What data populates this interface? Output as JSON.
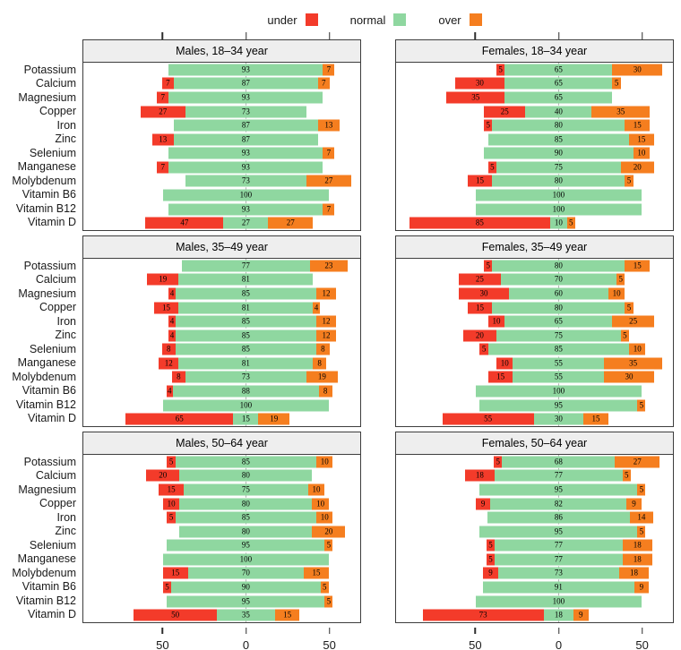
{
  "chart_data": {
    "type": "bar",
    "subtype": "diverging-stacked-bar (likert, normal segment centered at 0)",
    "title": "",
    "xlabel": "",
    "ylabel": "",
    "values_unit": "percent",
    "legend": {
      "position": "top-center",
      "items": [
        {
          "name": "under",
          "label": "under",
          "color": "#F33B2A"
        },
        {
          "name": "normal",
          "label": "normal",
          "color": "#8FD7A0"
        },
        {
          "name": "over",
          "label": "over",
          "color": "#F57E1F"
        }
      ]
    },
    "categories": [
      "Potassium",
      "Calcium",
      "Magnesium",
      "Copper",
      "Iron",
      "Zinc",
      "Selenium",
      "Manganese",
      "Molybdenum",
      "Vitamin B6",
      "Vitamin B12",
      "Vitamin D"
    ],
    "series_names": [
      "under",
      "normal",
      "over"
    ],
    "axis": {
      "range": [
        -98,
        69
      ],
      "ticks": [
        -50,
        0,
        50
      ],
      "tick_labels": [
        "50",
        "0",
        "50"
      ],
      "grid": "zero-line only (dashed)"
    },
    "panels": [
      {
        "title": "Males, 18–34 year",
        "rows": [
          [
            0,
            93,
            7
          ],
          [
            7,
            87,
            7
          ],
          [
            7,
            93,
            0
          ],
          [
            27,
            73,
            0
          ],
          [
            0,
            87,
            13
          ],
          [
            13,
            87,
            0
          ],
          [
            0,
            93,
            7
          ],
          [
            7,
            93,
            0
          ],
          [
            0,
            73,
            27
          ],
          [
            0,
            100,
            0
          ],
          [
            0,
            93,
            7
          ],
          [
            47,
            27,
            27
          ]
        ]
      },
      {
        "title": "Females, 18–34 year",
        "rows": [
          [
            5,
            65,
            30
          ],
          [
            30,
            65,
            5
          ],
          [
            35,
            65,
            0
          ],
          [
            25,
            40,
            35
          ],
          [
            5,
            80,
            15
          ],
          [
            0,
            85,
            15
          ],
          [
            0,
            90,
            10
          ],
          [
            5,
            75,
            20
          ],
          [
            15,
            80,
            5
          ],
          [
            0,
            100,
            0
          ],
          [
            0,
            100,
            0
          ],
          [
            85,
            10,
            5
          ]
        ]
      },
      {
        "title": "Males, 35–49 year",
        "rows": [
          [
            0,
            77,
            23
          ],
          [
            19,
            81,
            0
          ],
          [
            4,
            85,
            12
          ],
          [
            15,
            81,
            4
          ],
          [
            4,
            85,
            12
          ],
          [
            4,
            85,
            12
          ],
          [
            8,
            85,
            8
          ],
          [
            12,
            81,
            8
          ],
          [
            8,
            73,
            19
          ],
          [
            4,
            88,
            8
          ],
          [
            0,
            100,
            0
          ],
          [
            65,
            15,
            19
          ]
        ]
      },
      {
        "title": "Females, 35–49 year",
        "rows": [
          [
            5,
            80,
            15
          ],
          [
            25,
            70,
            5
          ],
          [
            30,
            60,
            10
          ],
          [
            15,
            80,
            5
          ],
          [
            10,
            65,
            25
          ],
          [
            20,
            75,
            5
          ],
          [
            5,
            85,
            10
          ],
          [
            10,
            55,
            35
          ],
          [
            15,
            55,
            30
          ],
          [
            0,
            100,
            0
          ],
          [
            0,
            95,
            5
          ],
          [
            55,
            30,
            15
          ]
        ]
      },
      {
        "title": "Males, 50–64 year",
        "rows": [
          [
            5,
            85,
            10
          ],
          [
            20,
            80,
            0
          ],
          [
            15,
            75,
            10
          ],
          [
            10,
            80,
            10
          ],
          [
            5,
            85,
            10
          ],
          [
            0,
            80,
            20
          ],
          [
            0,
            95,
            5
          ],
          [
            0,
            100,
            0
          ],
          [
            15,
            70,
            15
          ],
          [
            5,
            90,
            5
          ],
          [
            0,
            95,
            5
          ],
          [
            50,
            35,
            15
          ]
        ]
      },
      {
        "title": "Females, 50–64 year",
        "rows": [
          [
            5,
            68,
            27
          ],
          [
            18,
            77,
            5
          ],
          [
            0,
            95,
            5
          ],
          [
            9,
            82,
            9
          ],
          [
            0,
            86,
            14
          ],
          [
            0,
            95,
            5
          ],
          [
            5,
            77,
            18
          ],
          [
            5,
            77,
            18
          ],
          [
            9,
            73,
            18
          ],
          [
            0,
            91,
            9
          ],
          [
            0,
            100,
            0
          ],
          [
            73,
            18,
            9
          ]
        ]
      }
    ]
  }
}
